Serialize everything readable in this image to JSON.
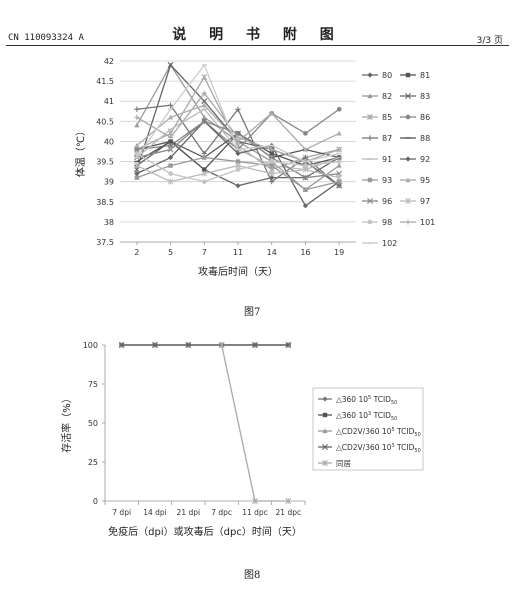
{
  "header": {
    "patent_no": "CN 110093324 A",
    "title": "说 明 书 附 图",
    "page": "3/3 页"
  },
  "figure7": {
    "caption": "图7"
  },
  "figure8": {
    "caption": "图8"
  },
  "chart_data": [
    {
      "type": "line",
      "categories": [
        "2",
        "5",
        "7",
        "11",
        "14",
        "16",
        "19"
      ],
      "xlabel": "攻毒后时间（天）",
      "ylabel": "体温（℃）",
      "ylim": [
        37.5,
        42
      ],
      "yticks": [
        "37.5",
        "38",
        "38.5",
        "39",
        "39.5",
        "40",
        "40.5",
        "41",
        "41.5",
        "42"
      ],
      "grid": "horizontal",
      "legend": "right",
      "series": [
        {
          "name": "80",
          "color": "#666666",
          "marker": "diamond",
          "values": [
            39.4,
            40.0,
            39.3,
            38.9,
            39.1,
            39.1,
            39.6
          ]
        },
        {
          "name": "81",
          "color": "#555555",
          "marker": "square",
          "values": [
            39.8,
            40.0,
            39.3,
            40.2,
            39.7,
            39.4,
            39.6
          ]
        },
        {
          "name": "82",
          "color": "#9a9a9a",
          "marker": "triangle",
          "values": [
            40.4,
            41.9,
            40.6,
            40.0,
            39.5,
            38.8,
            39.4
          ]
        },
        {
          "name": "83",
          "color": "#666666",
          "marker": "x",
          "values": [
            39.3,
            41.9,
            41.0,
            40.0,
            39.8,
            39.5,
            38.9
          ]
        },
        {
          "name": "85",
          "color": "#a8a8a8",
          "marker": "star",
          "values": [
            39.8,
            40.2,
            41.6,
            39.9,
            39.3,
            39.6,
            39.8
          ]
        },
        {
          "name": "86",
          "color": "#888888",
          "marker": "circle",
          "values": [
            39.8,
            39.9,
            40.5,
            39.8,
            40.7,
            40.2,
            40.8
          ]
        },
        {
          "name": "87",
          "color": "#777777",
          "marker": "plus",
          "values": [
            40.8,
            40.9,
            39.7,
            40.8,
            39.0,
            39.6,
            38.9
          ]
        },
        {
          "name": "88",
          "color": "#555555",
          "marker": "dash",
          "values": [
            39.5,
            40.0,
            39.6,
            40.2,
            39.6,
            39.8,
            39.6
          ]
        },
        {
          "name": "91",
          "color": "#bbbbbb",
          "marker": "dash",
          "values": [
            39.6,
            40.3,
            40.8,
            39.8,
            39.4,
            39.3,
            39.6
          ]
        },
        {
          "name": "92",
          "color": "#666666",
          "marker": "diamond",
          "values": [
            39.2,
            39.6,
            40.5,
            39.7,
            39.9,
            38.4,
            39.0
          ]
        },
        {
          "name": "93",
          "color": "#999999",
          "marker": "square",
          "values": [
            39.1,
            39.4,
            39.6,
            39.5,
            39.4,
            38.8,
            39.0
          ]
        },
        {
          "name": "95",
          "color": "#aaaaaa",
          "marker": "triangle",
          "values": [
            39.9,
            40.6,
            40.9,
            40.0,
            40.7,
            39.8,
            40.2
          ]
        },
        {
          "name": "96",
          "color": "#888888",
          "marker": "x",
          "values": [
            39.6,
            39.8,
            40.5,
            40.2,
            39.6,
            39.1,
            39.2
          ]
        },
        {
          "name": "97",
          "color": "#bbbbbb",
          "marker": "star",
          "values": [
            39.4,
            39.0,
            39.2,
            39.4,
            39.2,
            39.3,
            39.1
          ]
        },
        {
          "name": "98",
          "color": "#c4c4c4",
          "marker": "circle",
          "values": [
            39.7,
            39.2,
            39.0,
            39.3,
            39.5,
            39.4,
            39.5
          ]
        },
        {
          "name": "101",
          "color": "#aaaaaa",
          "marker": "plus",
          "values": [
            40.6,
            40.1,
            41.2,
            40.1,
            39.8,
            39.5,
            39.8
          ]
        },
        {
          "name": "102",
          "color": "#cccccc",
          "marker": "dash",
          "values": [
            39.6,
            40.8,
            41.9,
            39.8,
            39.9,
            39.5,
            39.7
          ]
        }
      ]
    },
    {
      "type": "line",
      "categories": [
        "7 dpi",
        "14 dpi",
        "21 dpi",
        "7 dpc",
        "11 dpc",
        "21 dpc"
      ],
      "xlabel": "免疫后（dpi）或攻毒后（dpc）时间（天）",
      "ylabel": "存活率（%）",
      "ylim": [
        0,
        100
      ],
      "yticks": [
        "0",
        "25",
        "50",
        "75",
        "100"
      ],
      "grid": "none",
      "legend": "right",
      "series": [
        {
          "name_main": "△360 10",
          "name_sup": "5",
          "name_rest": " TCID",
          "name_sub": "50",
          "color": "#777777",
          "marker": "diamond",
          "values": [
            100,
            100,
            100,
            100,
            100,
            100
          ]
        },
        {
          "name_main": "△360 10",
          "name_sup": "3",
          "name_rest": " TCID",
          "name_sub": "50",
          "color": "#555555",
          "marker": "square",
          "values": [
            100,
            100,
            100,
            100,
            100,
            100
          ]
        },
        {
          "name_main": "△CD2V/360 10",
          "name_sup": "5",
          "name_rest": " TCID",
          "name_sub": "50",
          "color": "#999999",
          "marker": "triangle",
          "values": [
            100,
            100,
            100,
            100,
            100,
            100
          ]
        },
        {
          "name_main": "△CD2V/360 10",
          "name_sup": "3",
          "name_rest": " TCID",
          "name_sub": "50",
          "color": "#666666",
          "marker": "x",
          "values": [
            100,
            100,
            100,
            100,
            100,
            100
          ]
        },
        {
          "name_main": "同居",
          "name_sup": "",
          "name_rest": "",
          "name_sub": "",
          "color": "#aaaaaa",
          "marker": "star",
          "values": [
            null,
            null,
            null,
            100,
            0,
            0
          ]
        }
      ]
    }
  ]
}
